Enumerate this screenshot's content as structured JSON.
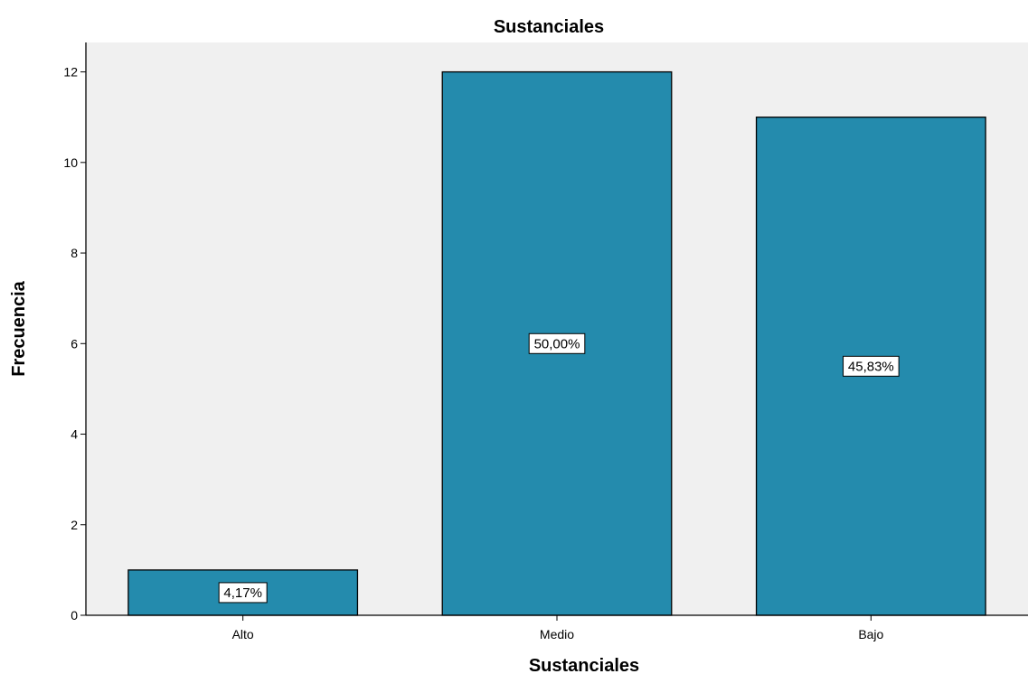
{
  "chart_data": {
    "type": "bar",
    "title": "Sustanciales",
    "xlabel": "Sustanciales",
    "ylabel": "Frecuencia",
    "categories": [
      "Alto",
      "Medio",
      "Bajo"
    ],
    "values": [
      1,
      12,
      11
    ],
    "data_labels": [
      "4,17%",
      "50,00%",
      "45,83%"
    ],
    "yticks": [
      0,
      2,
      4,
      6,
      8,
      10,
      12
    ],
    "ylim": [
      0,
      12.65
    ],
    "grid": false,
    "bar_color": "#248bad",
    "plot_background": "#f0f0f0"
  }
}
